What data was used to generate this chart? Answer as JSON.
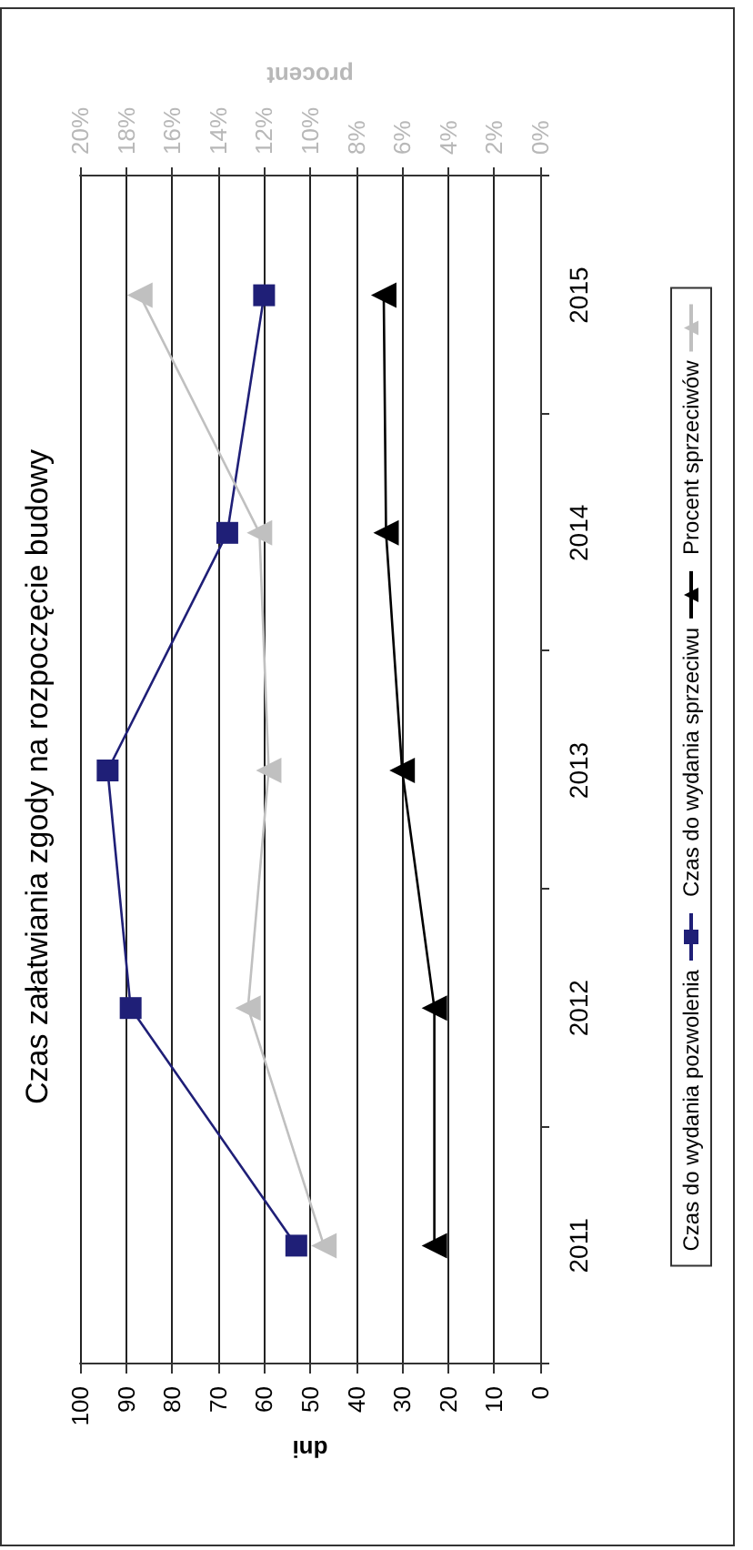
{
  "chart_data": {
    "type": "line",
    "orientation": "horizontal",
    "title": "Czas załatwiania zgody na rozpoczęcie budowy",
    "xlabel": "dni",
    "x2label": "procent",
    "categories": [
      "2015",
      "2014",
      "2013",
      "2012",
      "2011"
    ],
    "series": [
      {
        "name": "Czas do wydania pozwolenia",
        "color": "#1f1f77",
        "marker": "square",
        "values": [
          60,
          68,
          94,
          89,
          53
        ]
      },
      {
        "name": "Czas do wydania sprzeciwu",
        "color": "#000000",
        "marker": "triangle",
        "values": [
          34,
          33.5,
          30,
          23,
          23
        ]
      },
      {
        "name": "Procent sprzeciwów",
        "color": "#c0c0c0",
        "marker": "triangle",
        "axis": "x2",
        "values": [
          17.4,
          12.2,
          11.8,
          12.7,
          9.4
        ]
      }
    ],
    "xlim": [
      100,
      0
    ],
    "xticks": [
      100,
      90,
      80,
      70,
      60,
      50,
      40,
      30,
      20,
      10,
      0
    ],
    "x2lim": [
      20,
      0
    ],
    "x2ticks": [
      {
        "value": 20,
        "label": "20%"
      },
      {
        "value": 18,
        "label": "18%"
      },
      {
        "value": 16,
        "label": "16%"
      },
      {
        "value": 14,
        "label": "14%"
      },
      {
        "value": 12,
        "label": "12%"
      },
      {
        "value": 10,
        "label": "10%"
      },
      {
        "value": 8,
        "label": "8%"
      },
      {
        "value": 6,
        "label": "6%"
      },
      {
        "value": 4,
        "label": "4%"
      },
      {
        "value": 2,
        "label": "2%"
      },
      {
        "value": 0,
        "label": "0%"
      }
    ],
    "grid": "x",
    "legend": "right"
  }
}
